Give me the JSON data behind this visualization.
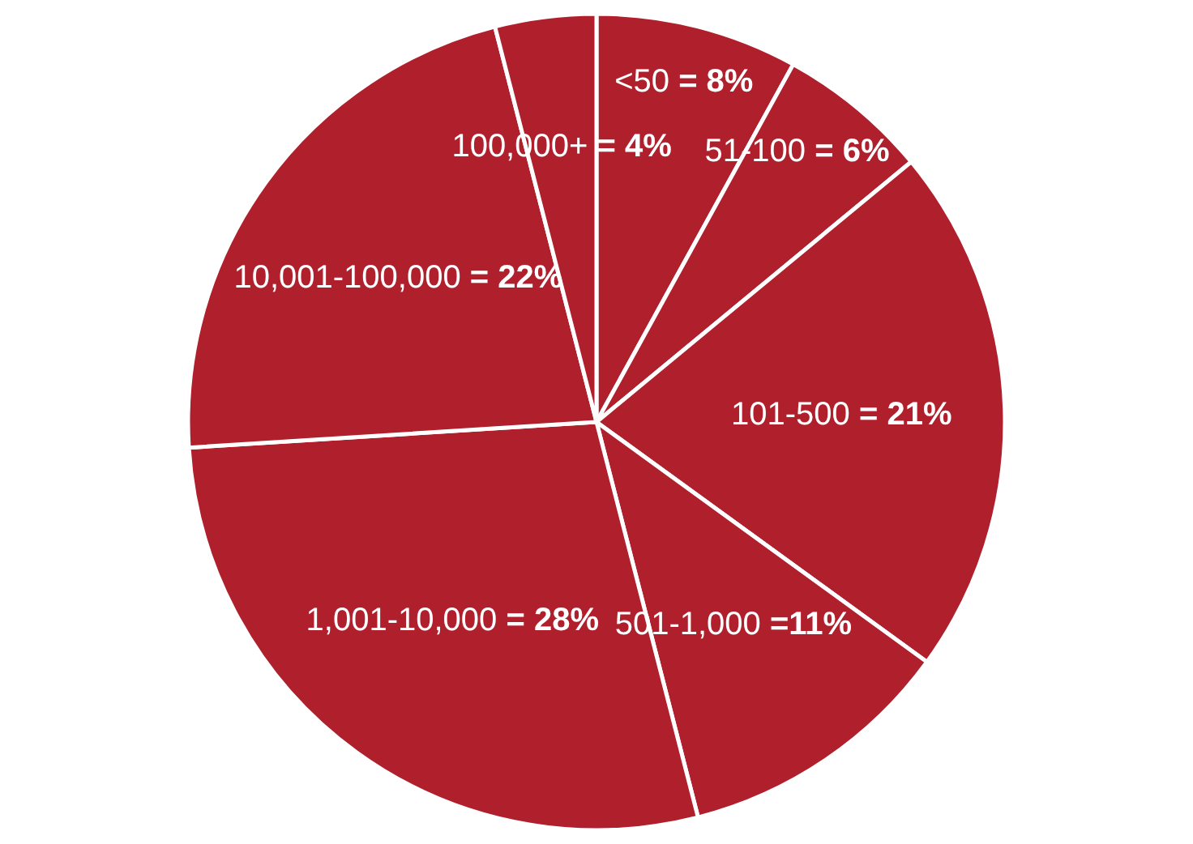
{
  "chart_data": {
    "type": "pie",
    "categories": [
      "<50",
      "51-100",
      "101-500",
      "501-1,000",
      "1,001-10,000",
      "10,001-100,000",
      "100,000+"
    ],
    "values": [
      8,
      6,
      21,
      11,
      28,
      22,
      4
    ],
    "colors": [
      "#b01f2c",
      "#b01f2c",
      "#b01f2c",
      "#b01f2c",
      "#b01f2c",
      "#b01f2c",
      "#b01f2c"
    ],
    "value_labels": [
      "= 8%",
      "= 6%",
      "= 21%",
      "=11%",
      "= 28%",
      "= 22%",
      "= 4%"
    ]
  }
}
